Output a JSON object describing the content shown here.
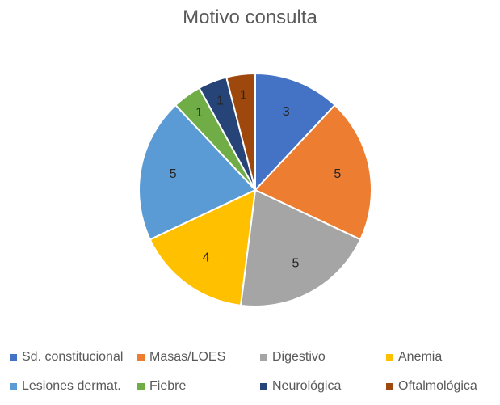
{
  "chart_data": {
    "type": "pie",
    "title": "Motivo consulta",
    "categories": [
      "Sd. constitucional",
      "Masas/LOES",
      "Digestivo",
      "Anemia",
      "Lesiones dermat.",
      "Fiebre",
      "Neurológica",
      "Oftalmológica"
    ],
    "values": [
      3,
      5,
      5,
      4,
      5,
      1,
      1,
      1
    ],
    "data_labels": [
      "3",
      "5",
      "5",
      "4",
      "5",
      "1",
      "1",
      "1"
    ],
    "colors": [
      "#4472C4",
      "#ED7D31",
      "#A5A5A5",
      "#FFC000",
      "#5B9BD5",
      "#70AD47",
      "#264478",
      "#9E480E"
    ],
    "legend_position": "bottom",
    "start_angle": "12 o'clock, clockwise"
  }
}
